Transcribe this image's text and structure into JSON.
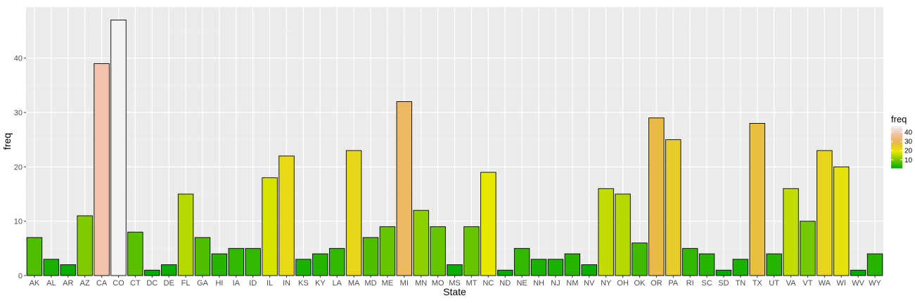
{
  "chart_data": {
    "type": "bar",
    "title": "",
    "xlabel": "State",
    "ylabel": "freq",
    "ylim": [
      0,
      49.4
    ],
    "y_ticks": [
      0,
      10,
      20,
      30,
      40
    ],
    "grid": true,
    "legend": {
      "title": "freq",
      "placement": "right",
      "ticks": [
        10,
        20,
        30,
        40
      ],
      "colors": [
        "#00AA00",
        "#E6E600",
        "#EAB64E",
        "#F2F2F2"
      ]
    },
    "categories": [
      "AK",
      "AL",
      "AR",
      "AZ",
      "CA",
      "CO",
      "CT",
      "DC",
      "DE",
      "FL",
      "GA",
      "HI",
      "IA",
      "ID",
      "IL",
      "IN",
      "KS",
      "KY",
      "LA",
      "MA",
      "MD",
      "ME",
      "MI",
      "MN",
      "MO",
      "MS",
      "MT",
      "NC",
      "ND",
      "NE",
      "NH",
      "NJ",
      "NM",
      "NV",
      "NY",
      "OH",
      "OK",
      "OR",
      "PA",
      "RI",
      "SC",
      "SD",
      "TN",
      "TX",
      "UT",
      "VA",
      "VT",
      "WA",
      "WI",
      "WV",
      "WY"
    ],
    "values": [
      7,
      3,
      2,
      11,
      39,
      47,
      8,
      1,
      2,
      15,
      7,
      4,
      5,
      5,
      18,
      22,
      3,
      4,
      5,
      23,
      7,
      9,
      32,
      12,
      9,
      2,
      9,
      19,
      1,
      5,
      3,
      3,
      4,
      2,
      16,
      15,
      6,
      29,
      25,
      5,
      4,
      1,
      3,
      28,
      4,
      16,
      10,
      23,
      20,
      1,
      4
    ]
  }
}
